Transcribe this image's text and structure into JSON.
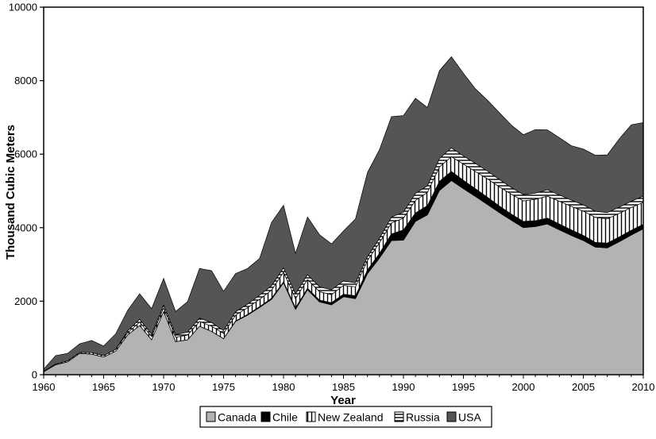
{
  "chart_data": {
    "type": "area",
    "stacked": true,
    "xlabel": "Year",
    "ylabel": "Thousand Cubic Meters",
    "xlim": [
      1960,
      2010
    ],
    "ylim": [
      0,
      10000
    ],
    "xticks": [
      1960,
      1965,
      1970,
      1975,
      1980,
      1985,
      1990,
      1995,
      2000,
      2005,
      2010
    ],
    "yticks": [
      0,
      2000,
      4000,
      6000,
      8000,
      10000
    ],
    "grid": false,
    "legend_position": "bottom-center",
    "x": [
      1960,
      1961,
      1962,
      1963,
      1964,
      1965,
      1966,
      1967,
      1968,
      1969,
      1970,
      1971,
      1972,
      1973,
      1974,
      1975,
      1976,
      1977,
      1978,
      1979,
      1980,
      1981,
      1982,
      1983,
      1984,
      1985,
      1986,
      1987,
      1988,
      1989,
      1990,
      1991,
      1992,
      1993,
      1994,
      1995,
      1996,
      1997,
      1998,
      1999,
      2000,
      2001,
      2002,
      2003,
      2004,
      2005,
      2006,
      2007,
      2008,
      2009,
      2010
    ],
    "series": [
      {
        "name": "Canada",
        "color": "#b3b3b3",
        "pattern": "solid",
        "values": [
          80,
          270,
          350,
          580,
          560,
          480,
          640,
          1080,
          1340,
          950,
          1720,
          900,
          950,
          1320,
          1180,
          980,
          1450,
          1620,
          1830,
          2050,
          2500,
          1780,
          2310,
          1980,
          1900,
          2120,
          2070,
          2750,
          3170,
          3650,
          3660,
          4170,
          4350,
          5010,
          5280,
          5060,
          4850,
          4630,
          4410,
          4200,
          4000,
          4030,
          4100,
          3940,
          3790,
          3650,
          3470,
          3450,
          3620,
          3800,
          3970
        ]
      },
      {
        "name": "Chile",
        "color": "#000000",
        "pattern": "solid",
        "values": [
          0,
          0,
          0,
          0,
          0,
          0,
          0,
          0,
          0,
          0,
          0,
          0,
          0,
          0,
          0,
          0,
          10,
          20,
          20,
          30,
          30,
          40,
          40,
          50,
          60,
          70,
          80,
          100,
          130,
          180,
          280,
          230,
          250,
          250,
          250,
          230,
          210,
          200,
          180,
          170,
          170,
          160,
          160,
          160,
          150,
          140,
          130,
          130,
          130,
          130,
          120
        ]
      },
      {
        "name": "New Zealand",
        "color": "#ffffff",
        "pattern": "vertical",
        "values": [
          10,
          20,
          30,
          30,
          40,
          40,
          50,
          60,
          90,
          90,
          100,
          120,
          130,
          130,
          140,
          140,
          160,
          180,
          200,
          220,
          260,
          250,
          240,
          230,
          220,
          240,
          240,
          260,
          290,
          300,
          320,
          340,
          360,
          390,
          400,
          440,
          470,
          500,
          520,
          540,
          560,
          580,
          600,
          620,
          640,
          660,
          680,
          660,
          640,
          620,
          600
        ]
      },
      {
        "name": "Russia",
        "color": "#ffffff",
        "pattern": "horizontal",
        "values": [
          0,
          0,
          0,
          0,
          0,
          0,
          0,
          50,
          80,
          60,
          80,
          70,
          80,
          90,
          100,
          80,
          90,
          100,
          110,
          120,
          120,
          130,
          130,
          130,
          130,
          120,
          110,
          100,
          120,
          160,
          160,
          190,
          180,
          230,
          240,
          220,
          220,
          210,
          200,
          180,
          170,
          170,
          170,
          170,
          170,
          170,
          170,
          170,
          170,
          170,
          170
        ]
      },
      {
        "name": "USA",
        "color": "#555555",
        "pattern": "solid",
        "values": [
          60,
          230,
          200,
          230,
          330,
          260,
          420,
          560,
          690,
          700,
          720,
          630,
          830,
          1350,
          1410,
          1070,
          1040,
          970,
          1000,
          1720,
          1700,
          1100,
          1570,
          1420,
          1250,
          1360,
          1740,
          2290,
          2410,
          2730,
          2630,
          2590,
          2130,
          2390,
          2480,
          2250,
          2030,
          1930,
          1820,
          1700,
          1630,
          1730,
          1630,
          1560,
          1480,
          1520,
          1520,
          1570,
          1860,
          2080,
          2000
        ]
      }
    ]
  }
}
